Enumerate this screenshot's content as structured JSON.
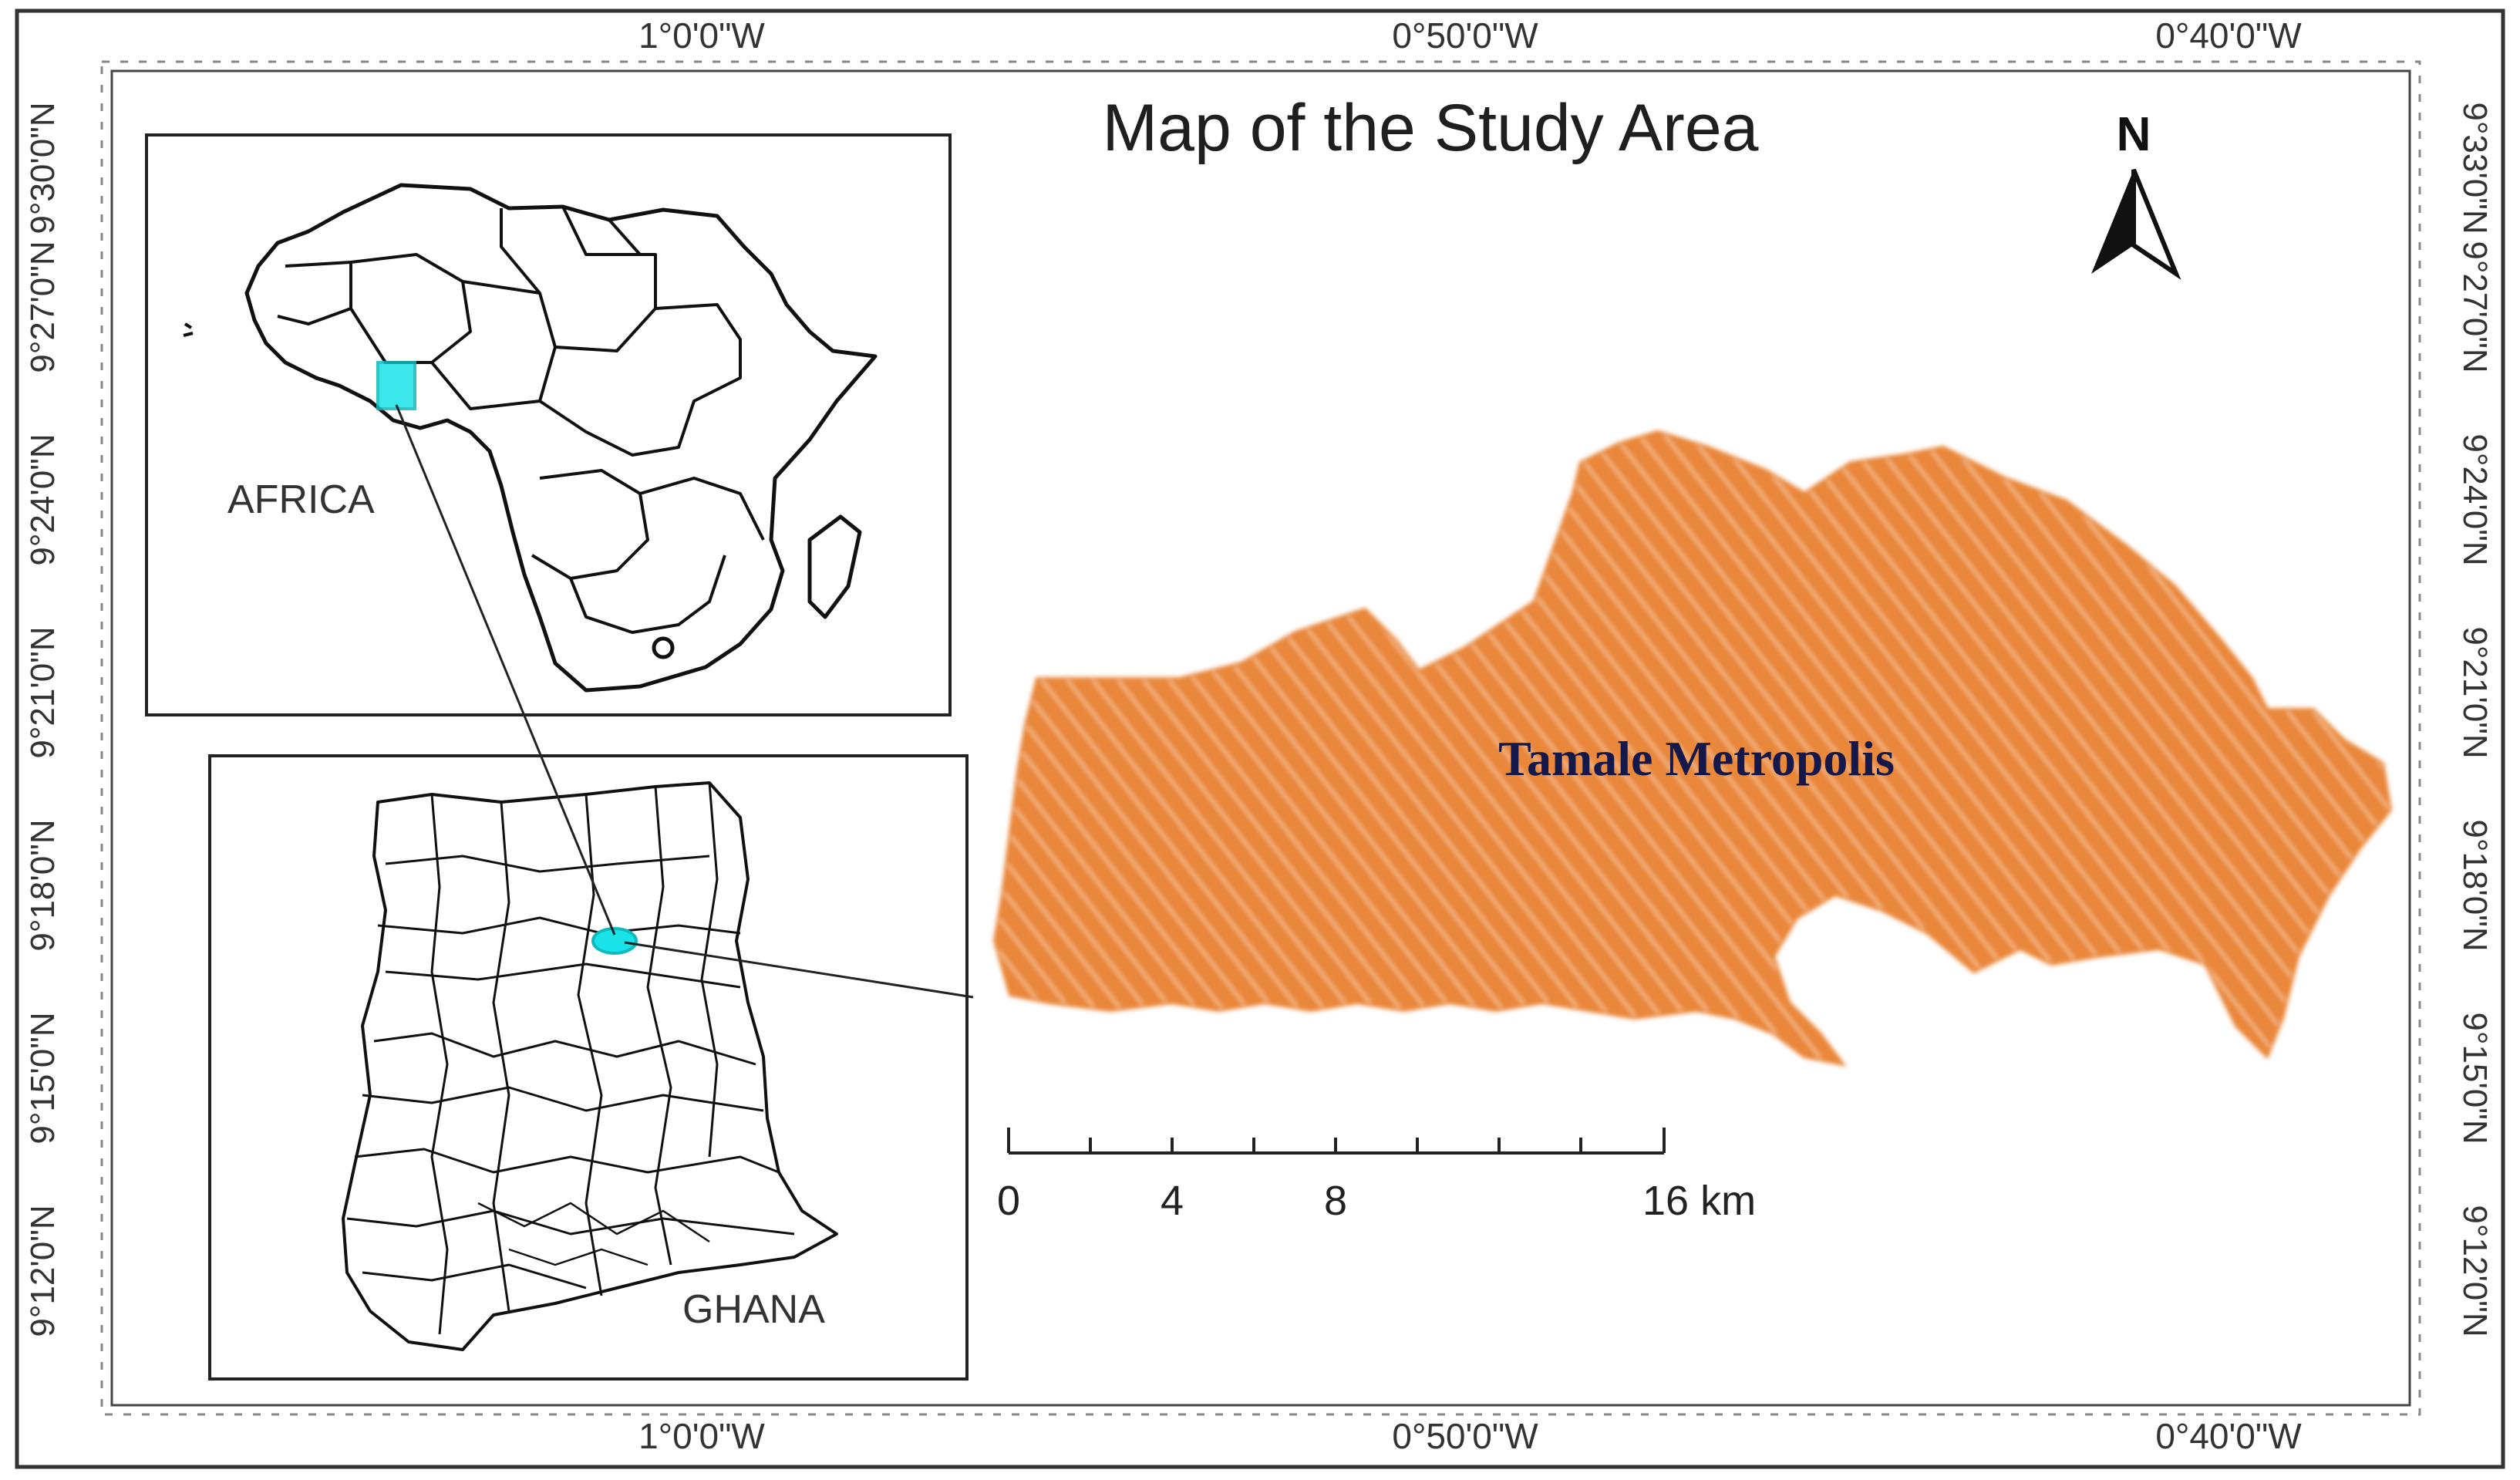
{
  "map": {
    "title": "Map of the Study Area",
    "north_label": "N",
    "main_area_label": "Tamale Metropolis",
    "inset_africa_label": "AFRICA",
    "inset_ghana_label": "GHANA",
    "scale_bar": {
      "labels": [
        "0",
        "4",
        "8",
        "16 km"
      ]
    },
    "longitude_labels": [
      "1°0'0\"W",
      "0°50'0\"W",
      "0°40'0\"W"
    ],
    "latitude_labels": [
      "9°12'0\"N",
      "9°15'0\"N",
      "9°18'0\"N",
      "9°21'0\"N",
      "9°24'0\"N",
      "9°27'0\"N",
      "9°30'0\"N",
      "9°33'0\"N"
    ]
  },
  "colors": {
    "area_fill": "#e9873a",
    "area_hatch": "#f6c08c",
    "highlight": "#19e3e8",
    "title_text": "#1f1f1f",
    "area_label": "#15184a",
    "frame": "#222222"
  }
}
